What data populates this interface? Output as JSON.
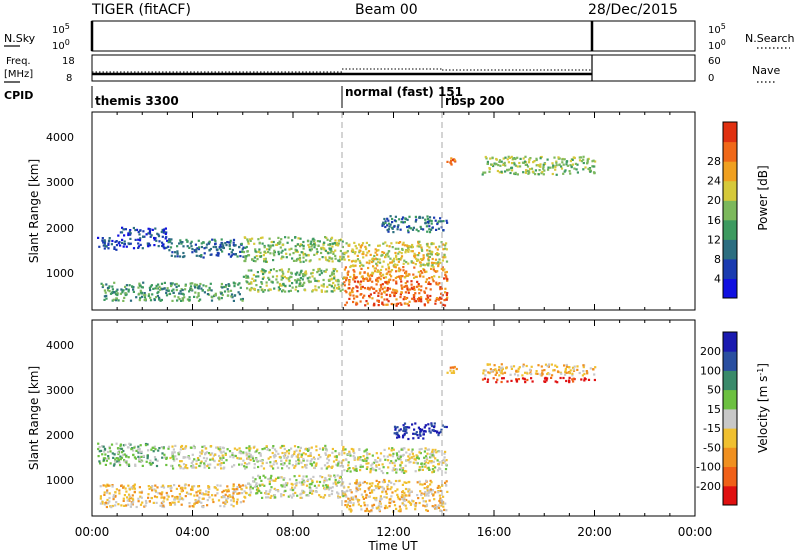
{
  "header": {
    "station": "TIGER (fitACF)",
    "beam": "Beam 00",
    "date": "28/Dec/2015"
  },
  "summary_panels": {
    "nsky": {
      "label": "N.Sky",
      "ticks_left": [
        "10^5",
        "10^0"
      ],
      "ticks_right": [
        "10^5",
        "10^0"
      ],
      "right_label": "N.Search"
    },
    "freq": {
      "label_top": "Freq.",
      "label_bottom": "[MHz]",
      "ticks_left": [
        "18",
        "8"
      ],
      "ticks_right": [
        "60",
        "0"
      ],
      "right_label": "Nave"
    },
    "cpid": {
      "label": "CPID",
      "segments": [
        {
          "name": "themis 3300",
          "start": 0.0,
          "end": 10.0
        },
        {
          "name": "normal (fast) 151",
          "start": 10.0,
          "end": 14.1
        },
        {
          "name": "rbsp 200",
          "start": 14.1,
          "end": 20.0
        }
      ]
    }
  },
  "chart_data": [
    {
      "type": "heatmap",
      "title": "",
      "xlabel": "Time UT",
      "ylabel": "Slant Range [km]",
      "xlim": [
        0,
        24
      ],
      "ylim": [
        180,
        4500
      ],
      "xtick_labels": [
        "00:00",
        "04:00",
        "08:00",
        "12:00",
        "16:00",
        "20:00",
        "00:00"
      ],
      "ytick_labels": [
        "1000",
        "2000",
        "3000",
        "4000"
      ],
      "colorbar": {
        "label": "Power [dB]",
        "range": [
          0,
          30
        ],
        "tick_labels": [
          "4",
          "8",
          "12",
          "16",
          "20",
          "24",
          "28"
        ],
        "colors": [
          "#1010e0",
          "#1a3bb0",
          "#2c6e80",
          "#3d9a60",
          "#7cb85c",
          "#d6c93a",
          "#f0a020",
          "#f06818",
          "#e03010"
        ]
      },
      "regions": [
        {
          "t0": 0.2,
          "t1": 1.0,
          "r0": 1500,
          "r1": 1800,
          "level": 1
        },
        {
          "t0": 1.0,
          "t1": 3.0,
          "r0": 1550,
          "r1": 2000,
          "level": 1
        },
        {
          "t0": 3.0,
          "t1": 6.0,
          "r0": 1350,
          "r1": 1750,
          "level": 2
        },
        {
          "t0": 6.0,
          "t1": 10.0,
          "r0": 1250,
          "r1": 1800,
          "level": 4
        },
        {
          "t0": 10.0,
          "t1": 14.1,
          "r0": 1150,
          "r1": 1700,
          "level": 5
        },
        {
          "t0": 0.3,
          "t1": 6.0,
          "r0": 400,
          "r1": 800,
          "level": 3
        },
        {
          "t0": 6.0,
          "t1": 10.0,
          "r0": 600,
          "r1": 1100,
          "level": 4
        },
        {
          "t0": 10.0,
          "t1": 14.1,
          "r0": 300,
          "r1": 900,
          "level": 7
        },
        {
          "t0": 10.0,
          "t1": 14.1,
          "r0": 900,
          "r1": 1150,
          "level": 6
        },
        {
          "t0": 14.1,
          "t1": 14.6,
          "r0": 3350,
          "r1": 3550,
          "level": 7
        },
        {
          "t0": 15.5,
          "t1": 20.0,
          "r0": 3150,
          "r1": 3550,
          "level": 4
        },
        {
          "t0": 11.5,
          "t1": 14.1,
          "r0": 1900,
          "r1": 2250,
          "level": 2
        }
      ]
    },
    {
      "type": "heatmap",
      "title": "",
      "xlabel": "Time UT",
      "ylabel": "Slant Range [km]",
      "xlim": [
        0,
        24
      ],
      "ylim": [
        180,
        4500
      ],
      "xtick_labels": [
        "00:00",
        "04:00",
        "08:00",
        "12:00",
        "16:00",
        "20:00",
        "00:00"
      ],
      "ytick_labels": [
        "1000",
        "2000",
        "3000",
        "4000"
      ],
      "colorbar": {
        "label": "Velocity [m s^-1]",
        "range": [
          -250,
          250
        ],
        "tick_labels": [
          "200",
          "100",
          "50",
          "15",
          "-15",
          "-50",
          "-100",
          "-200"
        ],
        "colors": [
          "#1a1ab0",
          "#2a4fa0",
          "#3a8a6a",
          "#6cc040",
          "#c8c8c8",
          "#f0c030",
          "#f09020",
          "#f06018",
          "#e01010"
        ]
      },
      "regions": [
        {
          "t0": 0.2,
          "t1": 3.0,
          "r0": 1300,
          "r1": 1800,
          "level": 3
        },
        {
          "t0": 3.0,
          "t1": 10.0,
          "r0": 1250,
          "r1": 1750,
          "level": 4
        },
        {
          "t0": 10.0,
          "t1": 14.1,
          "r0": 1150,
          "r1": 1700,
          "level": 4
        },
        {
          "t0": 0.3,
          "t1": 6.0,
          "r0": 400,
          "r1": 900,
          "level": 5
        },
        {
          "t0": 6.0,
          "t1": 10.0,
          "r0": 600,
          "r1": 1100,
          "level": 4
        },
        {
          "t0": 10.0,
          "t1": 14.1,
          "r0": 300,
          "r1": 1000,
          "level": 5
        },
        {
          "t0": 12.0,
          "t1": 14.1,
          "r0": 1900,
          "r1": 2250,
          "level": 0
        },
        {
          "t0": 14.1,
          "t1": 14.6,
          "r0": 3350,
          "r1": 3550,
          "level": 6
        },
        {
          "t0": 15.5,
          "t1": 20.0,
          "r0": 3150,
          "r1": 3250,
          "level": 8
        },
        {
          "t0": 15.5,
          "t1": 20.0,
          "r0": 3300,
          "r1": 3550,
          "level": 5
        }
      ]
    }
  ]
}
